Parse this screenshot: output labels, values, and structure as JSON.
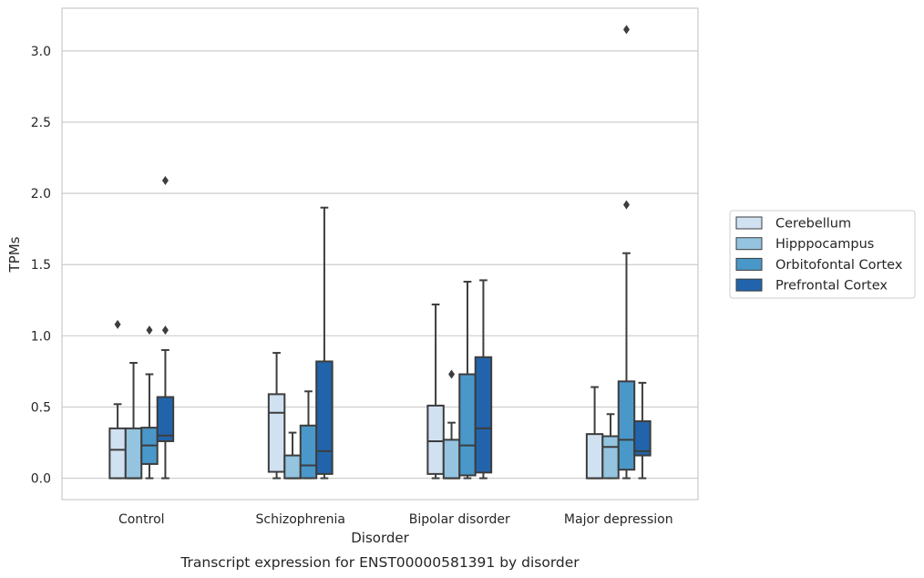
{
  "chart_data": {
    "type": "box",
    "caption": "Transcript expression for ENST00000581391 by disorder",
    "xlabel": "Disorder",
    "ylabel": "TPMs",
    "ylim": [
      -0.15,
      3.3
    ],
    "yticks": [
      0.0,
      0.5,
      1.0,
      1.5,
      2.0,
      2.5,
      3.0
    ],
    "ytick_labels": [
      "0.0",
      "0.5",
      "1.0",
      "1.5",
      "2.0",
      "2.5",
      "3.0"
    ],
    "grid": true,
    "legend_position": "right",
    "categories": [
      "Control",
      "Schizophrenia",
      "Bipolar disorder",
      "Major depression"
    ],
    "series": [
      {
        "name": "Cerebellum",
        "color": "#d0e1f2",
        "boxes": [
          {
            "whislo": 0.0,
            "q1": 0.0,
            "med": 0.2,
            "q3": 0.35,
            "whishi": 0.52,
            "fliers": [
              1.08
            ]
          },
          {
            "whislo": 0.0,
            "q1": 0.045,
            "med": 0.46,
            "q3": 0.59,
            "whishi": 0.88,
            "fliers": []
          },
          {
            "whislo": 0.0,
            "q1": 0.03,
            "med": 0.26,
            "q3": 0.51,
            "whishi": 1.22,
            "fliers": []
          },
          {
            "whislo": 0.0,
            "q1": 0.0,
            "med": 0.0,
            "q3": 0.31,
            "whishi": 0.64,
            "fliers": []
          }
        ]
      },
      {
        "name": "Hipppocampus",
        "color": "#94c4df",
        "boxes": [
          {
            "whislo": 0.0,
            "q1": 0.0,
            "med": 0.0,
            "q3": 0.35,
            "whishi": 0.81,
            "fliers": []
          },
          {
            "whislo": 0.0,
            "q1": 0.0,
            "med": 0.0,
            "q3": 0.16,
            "whishi": 0.32,
            "fliers": []
          },
          {
            "whislo": 0.0,
            "q1": 0.0,
            "med": 0.0,
            "q3": 0.27,
            "whishi": 0.39,
            "fliers": [
              0.73
            ]
          },
          {
            "whislo": 0.0,
            "q1": 0.0,
            "med": 0.22,
            "q3": 0.295,
            "whishi": 0.45,
            "fliers": []
          }
        ]
      },
      {
        "name": "Orbitofontal Cortex",
        "color": "#4a98c9",
        "boxes": [
          {
            "whislo": 0.0,
            "q1": 0.1,
            "med": 0.23,
            "q3": 0.355,
            "whishi": 0.73,
            "fliers": [
              1.04
            ]
          },
          {
            "whislo": 0.0,
            "q1": 0.0,
            "med": 0.09,
            "q3": 0.37,
            "whishi": 0.61,
            "fliers": []
          },
          {
            "whislo": 0.0,
            "q1": 0.02,
            "med": 0.23,
            "q3": 0.73,
            "whishi": 1.38,
            "fliers": []
          },
          {
            "whislo": 0.0,
            "q1": 0.06,
            "med": 0.27,
            "q3": 0.68,
            "whishi": 1.58,
            "fliers": [
              1.92,
              3.15
            ]
          }
        ]
      },
      {
        "name": "Prefrontal Cortex",
        "color": "#2164ab",
        "boxes": [
          {
            "whislo": 0.0,
            "q1": 0.26,
            "med": 0.3,
            "q3": 0.57,
            "whishi": 0.9,
            "fliers": [
              1.04,
              2.09
            ]
          },
          {
            "whislo": 0.0,
            "q1": 0.03,
            "med": 0.19,
            "q3": 0.82,
            "whishi": 1.9,
            "fliers": []
          },
          {
            "whislo": 0.0,
            "q1": 0.04,
            "med": 0.35,
            "q3": 0.85,
            "whishi": 1.39,
            "fliers": []
          },
          {
            "whislo": 0.0,
            "q1": 0.16,
            "med": 0.19,
            "q3": 0.4,
            "whishi": 0.67,
            "fliers": []
          }
        ]
      }
    ]
  }
}
